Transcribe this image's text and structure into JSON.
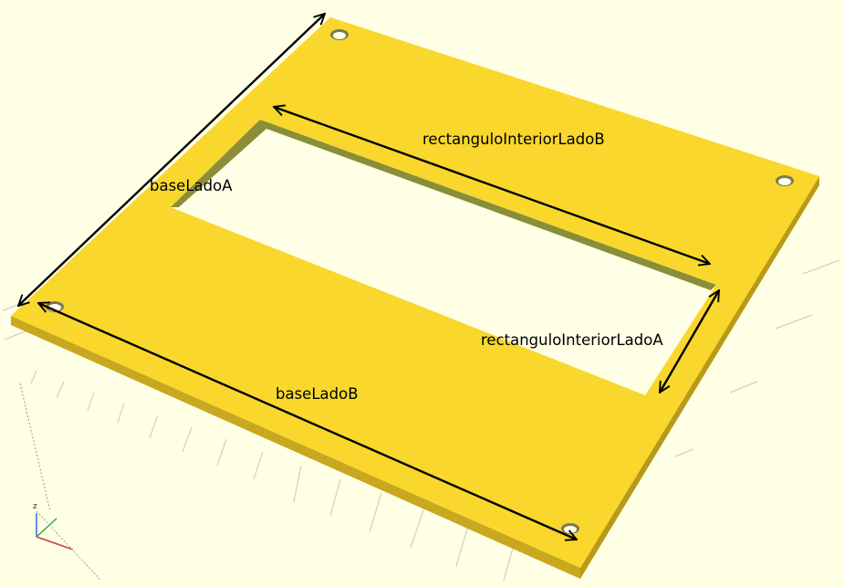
{
  "labels": {
    "base_lado_a": "baseLadoA",
    "base_lado_b": "baseLadoB",
    "rect_lado_a": "rectanguloInteriorLadoA",
    "rect_lado_b": "rectanguloInteriorLadoB"
  },
  "axes": {
    "z": "z"
  },
  "colors": {
    "background": "#ffffe5",
    "plate_top": "#f9d72c",
    "plate_edge": "#c8a81f",
    "slot_wall": "#8a8e38",
    "arrow": "#000000",
    "grid": "#c8c8b8"
  }
}
